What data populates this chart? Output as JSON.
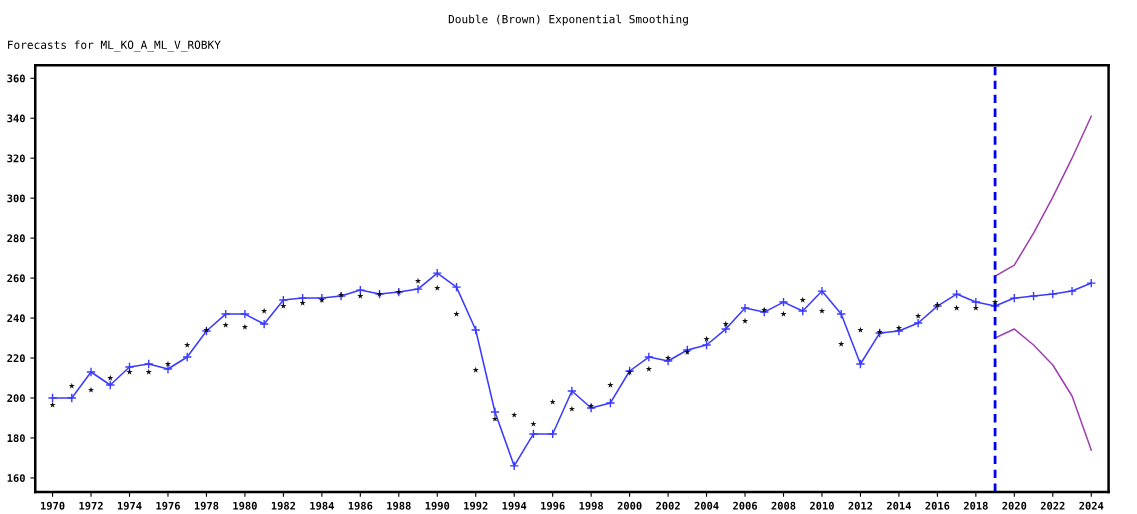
{
  "chart_data": {
    "type": "line",
    "title": "Double (Brown) Exponential Smoothing",
    "subtitle": "Forecasts for ML_KO_A_ML_V_ROBKY",
    "xlim": [
      1969.1,
      2024.9
    ],
    "xticks": [
      1970,
      1972,
      1974,
      1976,
      1978,
      1980,
      1982,
      1984,
      1986,
      1988,
      1990,
      1992,
      1994,
      1996,
      1998,
      2000,
      2002,
      2004,
      2006,
      2008,
      2010,
      2012,
      2014,
      2016,
      2018,
      2020,
      2022,
      2024
    ],
    "ylim": [
      153,
      366.5
    ],
    "yticks": [
      160,
      180,
      200,
      220,
      240,
      260,
      280,
      300,
      320,
      340,
      360
    ],
    "grid": false,
    "legend": false,
    "series": [
      {
        "color": "#3a3aff",
        "marker": "cross",
        "line_style": "solid",
        "x": [
          1970,
          1971,
          1972,
          1973,
          1974,
          1975,
          1976,
          1977,
          1978,
          1979,
          1980,
          1981,
          1982,
          1983,
          1984,
          1985,
          1986,
          1987,
          1988,
          1989,
          1990,
          1991,
          1992,
          1993,
          1994,
          1995,
          1996,
          1997,
          1998,
          1999,
          2000,
          2001,
          2002,
          2003,
          2004,
          2005,
          2006,
          2007,
          2008,
          2009,
          2010,
          2011,
          2012,
          2013,
          2014,
          2015,
          2016,
          2017,
          2018,
          2019,
          2020,
          2021,
          2022,
          2023,
          2024
        ],
        "values": [
          200,
          200,
          213,
          206.5,
          215.5,
          217,
          214.5,
          220.5,
          233.5,
          242,
          242,
          237,
          249,
          250,
          250,
          251,
          254,
          252,
          253,
          254.5,
          262.5,
          255.5,
          234,
          193,
          166,
          182,
          182,
          203.5,
          195,
          197.5,
          213.5,
          220.5,
          218.5,
          224,
          226.5,
          234.5,
          245,
          243,
          248,
          243.5,
          253.5,
          242,
          217,
          232.5,
          233.5,
          237.5,
          246,
          252,
          248,
          246,
          250,
          251,
          252,
          253.5,
          257.5
        ]
      },
      {
        "type": "scatter",
        "color": "#111111",
        "marker": "star",
        "x": [
          1970,
          1971,
          1972,
          1973,
          1974,
          1975,
          1976,
          1977,
          1978,
          1979,
          1980,
          1981,
          1982,
          1983,
          1984,
          1985,
          1986,
          1987,
          1988,
          1989,
          1990,
          1991,
          1992,
          1993,
          1994,
          1995,
          1996,
          1997,
          1998,
          1999,
          2000,
          2001,
          2002,
          2003,
          2004,
          2005,
          2006,
          2007,
          2008,
          2009,
          2010,
          2011,
          2012,
          2013,
          2014,
          2015,
          2016,
          2017,
          2018,
          2019
        ],
        "values": [
          196.5,
          206,
          204,
          210,
          213,
          213,
          217,
          226.5,
          234,
          236.5,
          235.5,
          243.5,
          246,
          247.5,
          249,
          251.5,
          251,
          252,
          253,
          258.5,
          255,
          242,
          214,
          189.5,
          191.5,
          187,
          198,
          194.5,
          196,
          206.5,
          213,
          214.5,
          220,
          223,
          229.5,
          237,
          238.5,
          244,
          242,
          249,
          243.5,
          227,
          234,
          233,
          235,
          241,
          246.5,
          245,
          245,
          248
        ]
      },
      {
        "color": "#a040b0",
        "marker": "none",
        "line_style": "solid",
        "x": [
          2019,
          2020,
          2021,
          2022,
          2023,
          2024
        ],
        "values": [
          261,
          266.5,
          282.5,
          300.5,
          320,
          341
        ]
      },
      {
        "color": "#a040b0",
        "marker": "none",
        "line_style": "solid",
        "x": [
          2019,
          2020,
          2021,
          2022,
          2023,
          2024
        ],
        "values": [
          230,
          234.5,
          226.5,
          216.5,
          201,
          174
        ]
      }
    ],
    "ref_lines": [
      {
        "axis": "x",
        "value": 2019,
        "color": "#0000ee",
        "line_style": "dashed"
      }
    ]
  }
}
